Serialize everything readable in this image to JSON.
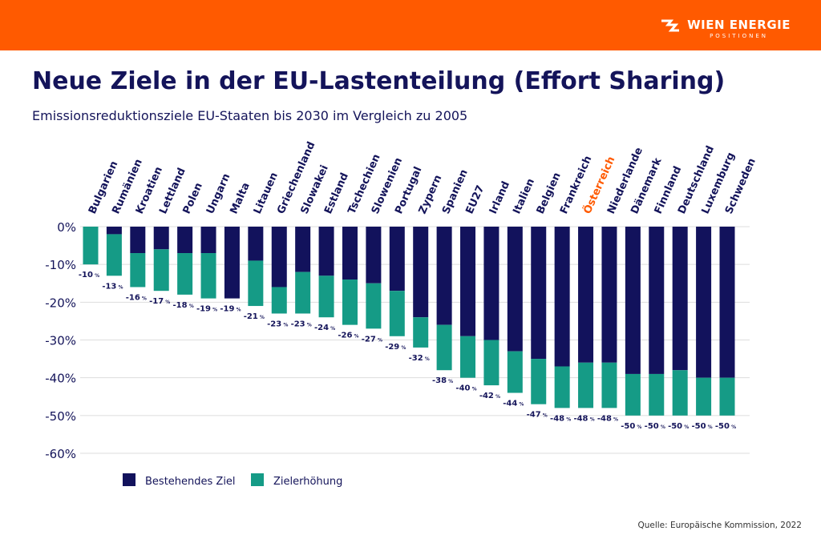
{
  "header": {
    "brand": "WIEN ENERGIE",
    "brand_sub": "POSITIONEN",
    "color": "#ff5a00"
  },
  "title": "Neue Ziele in der EU-Lastenteilung (Effort Sharing)",
  "subtitle": "Emissionsreduktionsziele EU-Staaten bis 2030 im Vergleich zu 2005",
  "source": "Quelle: Europäische Kommission, 2022",
  "chart_data": {
    "type": "bar",
    "stacked": true,
    "categories": [
      "Bulgarien",
      "Rumänien",
      "Kroatien",
      "Lettland",
      "Polen",
      "Ungarn",
      "Malta",
      "Litauen",
      "Griechenland",
      "Slowakei",
      "Estland",
      "Tschechien",
      "Slowenien",
      "Portugal",
      "Zypern",
      "Spanien",
      "EU27",
      "Irland",
      "Italien",
      "Belgien",
      "Frankreich",
      "Österreich",
      "Niederlande",
      "Dänemark",
      "Finnland",
      "Deutschland",
      "Luxemburg",
      "Schweden"
    ],
    "highlight_category": "Österreich",
    "highlight_color": "#ff5a00",
    "series": [
      {
        "name": "Bestehendes Ziel",
        "color": "#12125c",
        "values": [
          0,
          -2,
          -7,
          -6,
          -7,
          -7,
          -19,
          -9,
          -16,
          -12,
          -13,
          -14,
          -15,
          -17,
          -24,
          -26,
          -29,
          -30,
          -33,
          -35,
          -37,
          -36,
          -36,
          -39,
          -39,
          -38,
          -40,
          -40
        ]
      },
      {
        "name": "Zielerhöhung",
        "color": "#159b86",
        "values": [
          -10,
          -11,
          -9,
          -11,
          -11,
          -12,
          0,
          -12,
          -7,
          -11,
          -11,
          -12,
          -12,
          -12,
          -8,
          -12,
          -11,
          -12,
          -11,
          -12,
          -11,
          -12,
          -12,
          -11,
          -11,
          -12,
          -10,
          -10
        ]
      }
    ],
    "totals": [
      -10,
      -13,
      -16,
      -17,
      -18,
      -19,
      -19,
      -21,
      -23,
      -23,
      -24,
      -26,
      -27,
      -29,
      -32,
      -38,
      -40,
      -42,
      -44,
      -47,
      -48,
      -48,
      -48,
      -50,
      -50,
      -50,
      -50,
      -50
    ],
    "total_label_unit": "%",
    "yticks": [
      0,
      -10,
      -20,
      -30,
      -40,
      -50,
      -60
    ],
    "ytick_labels": [
      "0%",
      "-10%",
      "-20%",
      "-30%",
      "-40%",
      "-50%",
      "-60%"
    ],
    "ylim": [
      -60,
      0
    ],
    "grid": true,
    "legend_position": "bottom-left"
  }
}
